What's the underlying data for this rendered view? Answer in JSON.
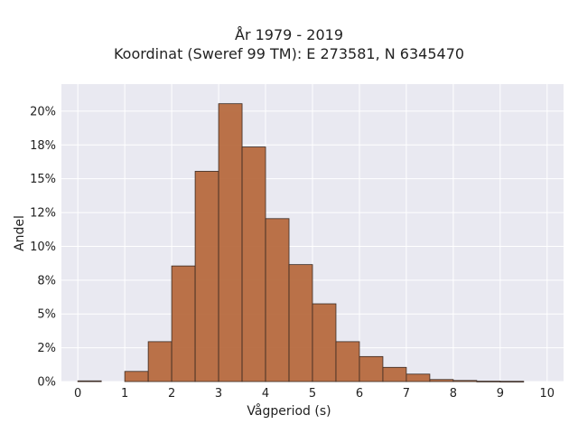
{
  "chart_data": {
    "type": "bar",
    "title_line1": "År 1979 - 2019",
    "title_line2": "Koordinat (Sweref 99 TM): E 273581, N 6345470",
    "xlabel": "Vågperiod (s)",
    "ylabel": "Andel",
    "bin_width": 0.5,
    "bins_start": [
      0,
      0.5,
      1,
      1.5,
      2,
      2.5,
      3,
      3.5,
      4,
      4.5,
      5,
      5.5,
      6,
      6.5,
      7,
      7.5,
      8,
      8.5,
      9,
      9.5
    ],
    "values": [
      0.0005,
      0.0,
      0.0075,
      0.0295,
      0.0855,
      0.1555,
      0.2055,
      0.1735,
      0.1205,
      0.0865,
      0.0575,
      0.0295,
      0.0185,
      0.0105,
      0.0055,
      0.0015,
      0.0008,
      0.0003,
      0.0002,
      0.0
    ],
    "xlim": [
      -0.35,
      10.35
    ],
    "ylim": [
      0,
      0.22
    ],
    "xticks": [
      0,
      1,
      2,
      3,
      4,
      5,
      6,
      7,
      8,
      9,
      10
    ],
    "xtick_labels": [
      "0",
      "1",
      "2",
      "3",
      "4",
      "5",
      "6",
      "7",
      "8",
      "9",
      "10"
    ],
    "yticks": [
      0,
      0.025,
      0.05,
      0.075,
      0.1,
      0.125,
      0.15,
      0.175,
      0.2
    ],
    "ytick_labels": [
      "0%",
      "2%",
      "5%",
      "8%",
      "10%",
      "12%",
      "15%",
      "18%",
      "20%"
    ],
    "grid": true,
    "colors": {
      "bar_fill": "#b5663a",
      "bar_stroke": "#3a2a22",
      "plot_bg": "#e9e9f1",
      "grid": "#ffffff"
    }
  }
}
